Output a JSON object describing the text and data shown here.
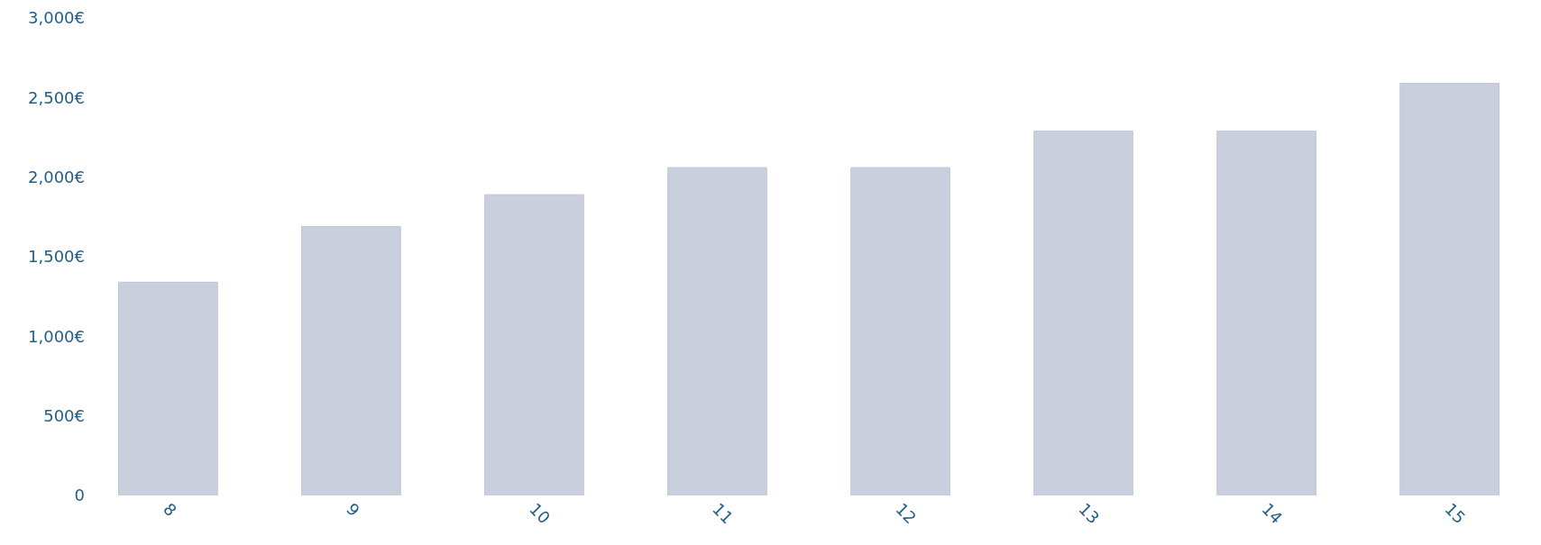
{
  "chart_data": {
    "type": "bar",
    "categories": [
      "8",
      "9",
      "10",
      "11",
      "12",
      "13",
      "14",
      "15"
    ],
    "values": [
      1340,
      1690,
      1890,
      2060,
      2060,
      2290,
      2290,
      2590
    ],
    "color": "#c9cfdd",
    "ylim": [
      0,
      3000
    ],
    "yticks": [
      0,
      {
        "value": 500,
        "label": "500€"
      },
      {
        "value": 1000,
        "label": "1,000€"
      },
      {
        "value": 1500,
        "label": "1,500€"
      },
      {
        "value": 2000,
        "label": "2,000€"
      },
      {
        "value": 2500,
        "label": "2,500€"
      },
      {
        "value": 3000,
        "label": "3,000€"
      }
    ],
    "grid": false
  }
}
